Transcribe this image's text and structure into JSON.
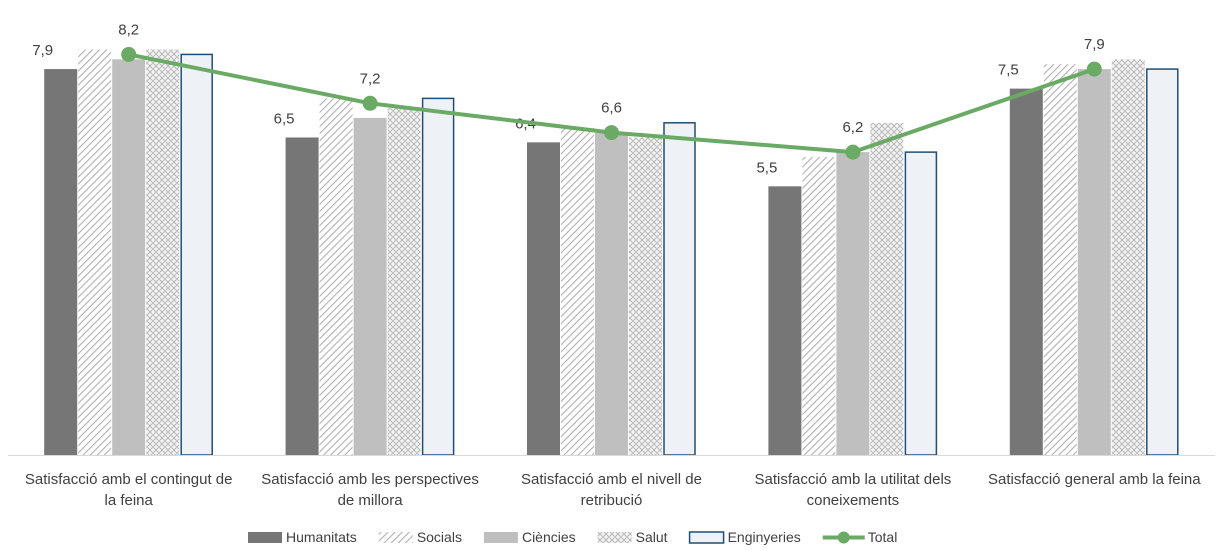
{
  "chart_data": {
    "type": "bar",
    "categories": [
      [
        "Satisfacció amb el contingut de",
        "la feina"
      ],
      [
        "Satisfacció amb les perspectives",
        "de millora"
      ],
      [
        "Satisfacció amb el nivell de",
        "retribució"
      ],
      [
        "Satisfacció amb la utilitat dels",
        "coneixements"
      ],
      [
        "Satisfacció general amb la feina"
      ]
    ],
    "series": [
      {
        "name": "Humanitats",
        "kind": "bar",
        "style": "solid-dark",
        "color": "#767676",
        "values": [
          7.9,
          6.5,
          6.4,
          5.5,
          7.5
        ],
        "show_labels": true
      },
      {
        "name": "Socials",
        "kind": "bar",
        "style": "diagonal-hatch",
        "color": "#bfbfbf",
        "values": [
          8.3,
          7.3,
          6.7,
          6.1,
          8.0
        ],
        "show_labels": false
      },
      {
        "name": "Ciències",
        "kind": "bar",
        "style": "solid-light",
        "color": "#bfbfbf",
        "values": [
          8.1,
          6.9,
          6.6,
          6.2,
          7.9
        ],
        "show_labels": false
      },
      {
        "name": "Salut",
        "kind": "bar",
        "style": "crosshatch",
        "color": "#d0d0d0",
        "values": [
          8.3,
          7.1,
          6.5,
          6.8,
          8.1
        ],
        "show_labels": false
      },
      {
        "name": "Enginyeries",
        "kind": "bar",
        "style": "outline",
        "color": "#1f4e79",
        "values": [
          8.2,
          7.3,
          6.8,
          6.2,
          7.9
        ],
        "show_labels": false
      },
      {
        "name": "Total",
        "kind": "line",
        "style": "line-marker",
        "color": "#6aaa64",
        "values": [
          8.2,
          7.2,
          6.6,
          6.2,
          7.9
        ],
        "show_labels": true
      }
    ],
    "ylim": [
      0,
      8.7
    ],
    "grid": false,
    "legend_position": "bottom"
  }
}
